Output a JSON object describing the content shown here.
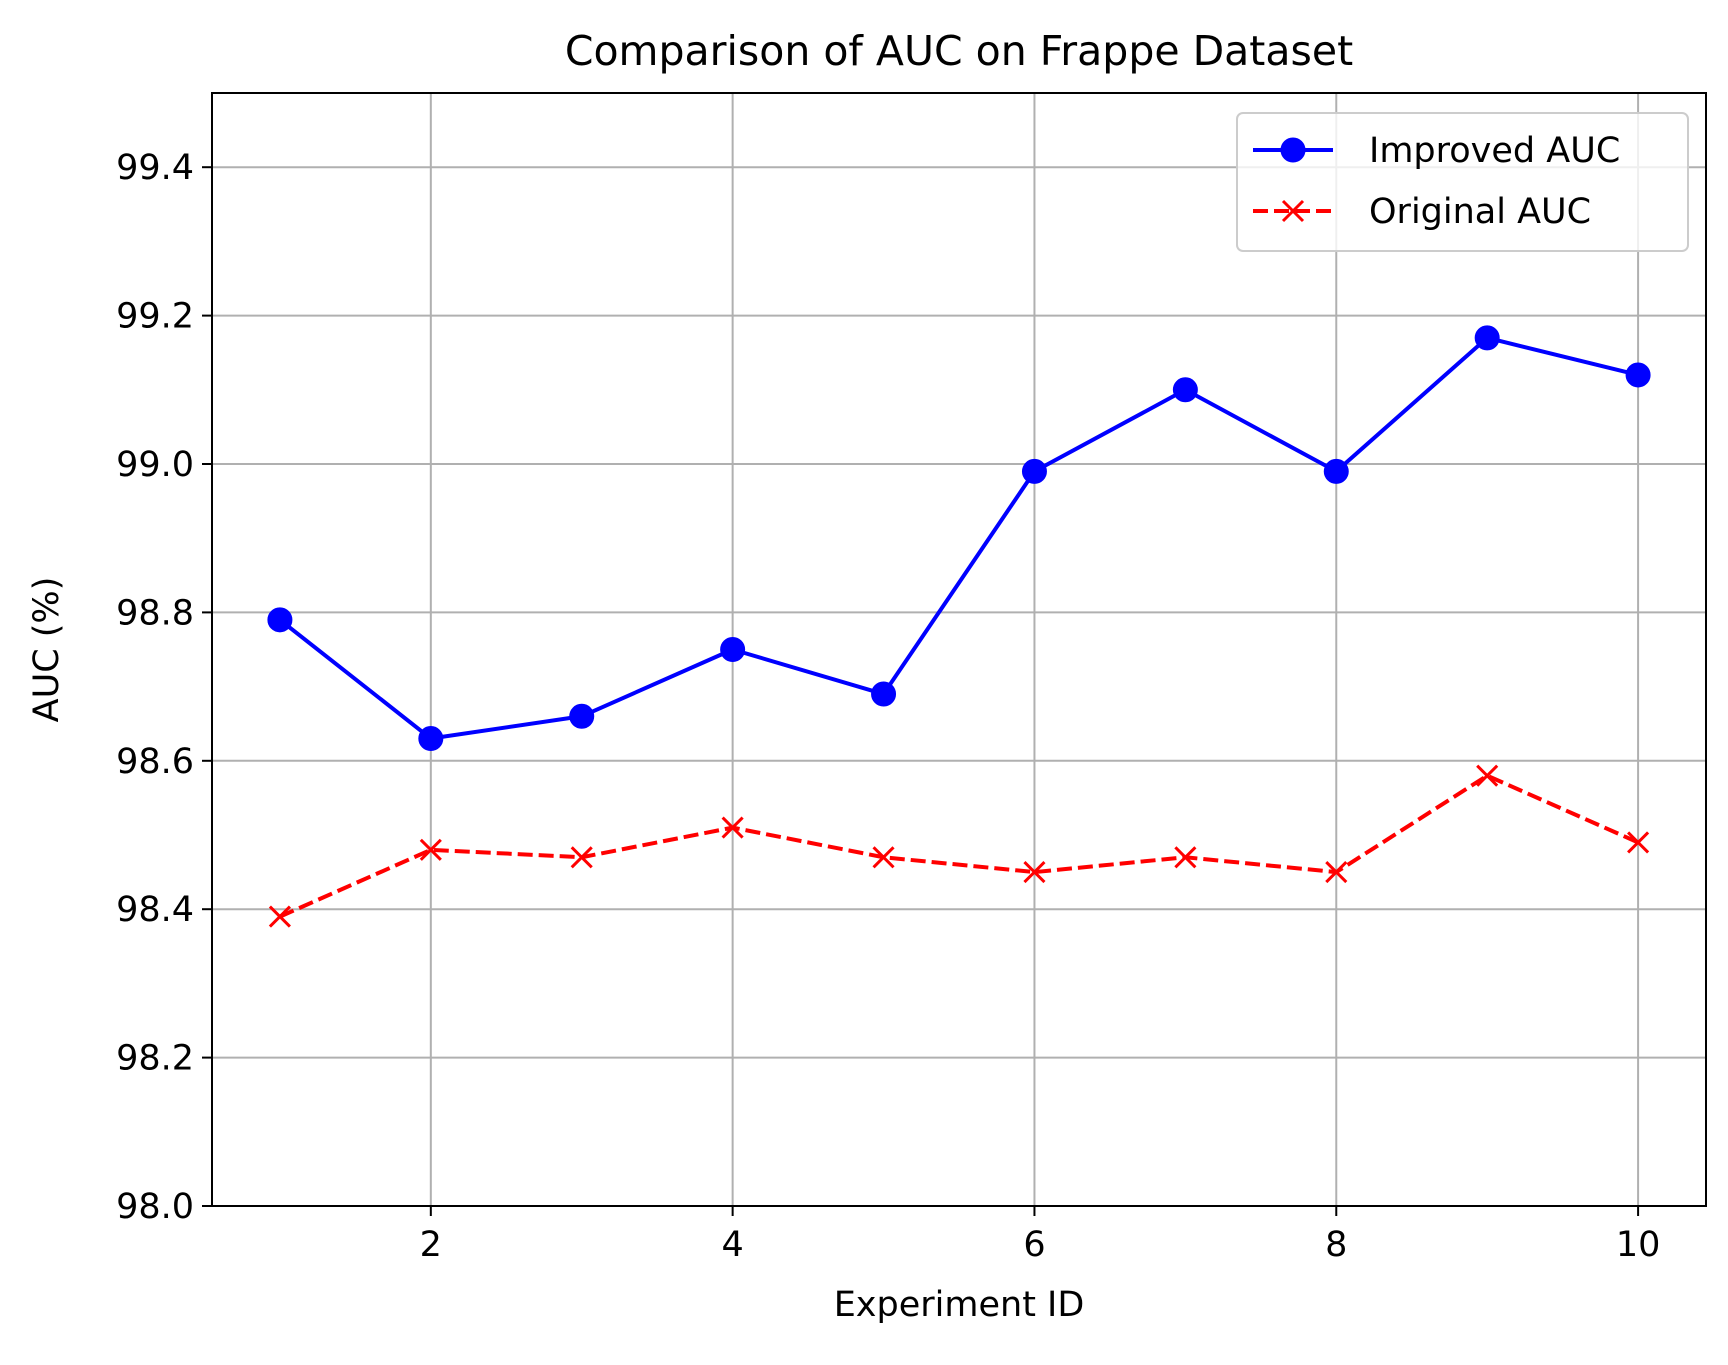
{
  "chart_data": {
    "type": "line",
    "title": "Comparison of AUC on Frappe Dataset",
    "xlabel": "Experiment ID",
    "ylabel": "AUC (%)",
    "x": [
      1,
      2,
      3,
      4,
      5,
      6,
      7,
      8,
      9,
      10
    ],
    "xlim": [
      0.55,
      10.45
    ],
    "ylim": [
      98.0,
      99.5
    ],
    "xticks": [
      2,
      4,
      6,
      8,
      10
    ],
    "xtick_labels": [
      "2",
      "4",
      "6",
      "8",
      "10"
    ],
    "yticks": [
      98.0,
      98.2,
      98.4,
      98.6,
      98.8,
      99.0,
      99.2,
      99.4
    ],
    "ytick_labels": [
      "98.0",
      "98.2",
      "98.4",
      "98.6",
      "98.8",
      "99.0",
      "99.2",
      "99.4"
    ],
    "grid": true,
    "legend_position": "top-right",
    "series": [
      {
        "name": "Improved AUC",
        "color": "#0000ff",
        "line_style": "solid",
        "marker": "circle",
        "values": [
          98.79,
          98.63,
          98.66,
          98.75,
          98.69,
          98.99,
          99.1,
          98.99,
          99.17,
          99.12
        ]
      },
      {
        "name": "Original AUC",
        "color": "#ff0000",
        "line_style": "dashed",
        "marker": "x",
        "values": [
          98.39,
          98.48,
          98.47,
          98.51,
          98.47,
          98.45,
          98.47,
          98.45,
          98.58,
          98.49
        ]
      }
    ]
  }
}
